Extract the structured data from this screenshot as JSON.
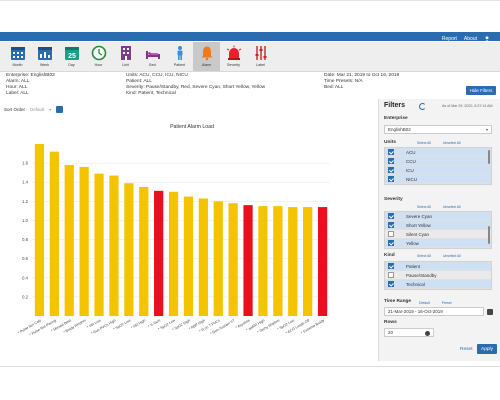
{
  "header": {
    "report_link": "Report",
    "about_link": "About",
    "user_icon": "user-icon"
  },
  "toolbar": {
    "items": [
      {
        "label": "Month",
        "icon": "calendar-month-icon"
      },
      {
        "label": "Week",
        "icon": "calendar-week-icon"
      },
      {
        "label": "Day",
        "icon": "calendar-day-icon"
      },
      {
        "label": "Hour",
        "icon": "clock-icon"
      },
      {
        "label": "Unit",
        "icon": "building-icon"
      },
      {
        "label": "Bed",
        "icon": "bed-icon"
      },
      {
        "label": "Patient",
        "icon": "person-icon"
      },
      {
        "label": "Alarm",
        "icon": "bell-icon"
      },
      {
        "label": "Severity",
        "icon": "siren-icon"
      },
      {
        "label": "Label",
        "icon": "sliders-icon"
      }
    ],
    "active": "Alarm"
  },
  "summary": {
    "enterprise": "Enterprise: EnglishB02",
    "alarm": "Alarm: ALL",
    "hour": "Hour: ALL",
    "label": "Label: ALL",
    "units": "Units: ACU, CCU, ICU, NICU",
    "patient": "Patient: ALL",
    "severity": "Severity: Pause/Standby, Red, Severe Cyan, Short Yellow, Yellow",
    "kind": "Kind: Patient, Technical",
    "date": "Date: Mar 21, 2019 to Oct 16, 2019",
    "time_presets": "Time Presets: N/A",
    "bed": "Bed: ALL"
  },
  "hide_filters_label": "Hide Filters",
  "sort": {
    "label": "Sort Order",
    "value": "Default"
  },
  "chart_data": {
    "type": "bar",
    "title": "Patient Alarm Load",
    "ylim": [
      0,
      1.8
    ],
    "yticks": [
      0.2,
      0.4,
      0.6,
      0.8,
      1.0,
      1.2,
      1.4,
      1.6
    ],
    "categories": [
      "* Pulse Not Cals",
      "* Pulse Not Pacing",
      "* Missed Beat",
      "* Brady Rhythm",
      "* HR Low",
      "* Run PVCs High",
      "* SpO2 Low",
      "* HR High",
      "* V-Tach",
      "* SpO2 Low",
      "* SpO2 High",
      "* NBP High",
      "* R on T PVCs",
      "* Non-Sustain VT",
      "* Asystole",
      "* awRR High",
      "* Tachy Rhythm",
      "* SpO2 Low",
      "* ECG Leads Off",
      "* Extreme Brady"
    ],
    "values": [
      1.8,
      1.72,
      1.58,
      1.56,
      1.49,
      1.47,
      1.39,
      1.35,
      1.31,
      1.3,
      1.25,
      1.23,
      1.2,
      1.18,
      1.16,
      1.15,
      1.15,
      1.14,
      1.14,
      1.14
    ],
    "severity": [
      "yellow",
      "yellow",
      "yellow",
      "yellow",
      "yellow",
      "yellow",
      "yellow",
      "yellow",
      "red",
      "yellow",
      "yellow",
      "yellow",
      "yellow",
      "yellow",
      "red",
      "yellow",
      "yellow",
      "yellow",
      "yellow",
      "red"
    ],
    "colors": {
      "yellow": "#f5c400",
      "red": "#e8101c"
    }
  },
  "filters": {
    "title": "Filters",
    "as_of": "As of Mar 29, 2020, 8:37:14 AM",
    "enterprise": {
      "label": "Enterprise",
      "value": "EnglishB02"
    },
    "units": {
      "label": "Units",
      "select_all": "Select All",
      "unselect_all": "Unselect All",
      "items": [
        {
          "name": "ACU",
          "checked": true
        },
        {
          "name": "CCU",
          "checked": true
        },
        {
          "name": "ICU",
          "checked": true
        },
        {
          "name": "NICU",
          "checked": true
        }
      ]
    },
    "severity": {
      "label": "Severity",
      "select_all": "Select All",
      "unselect_all": "Unselect All",
      "items": [
        {
          "name": "Severe Cyan",
          "checked": true
        },
        {
          "name": "Short Yellow",
          "checked": true
        },
        {
          "name": "Silent Cyan",
          "checked": false
        },
        {
          "name": "Yellow",
          "checked": true
        }
      ]
    },
    "kind": {
      "label": "Kind",
      "select_all": "Select All",
      "unselect_all": "Unselect All",
      "items": [
        {
          "name": "Patient",
          "checked": true
        },
        {
          "name": "Pause/Standby",
          "checked": false
        },
        {
          "name": "Technical",
          "checked": true
        }
      ]
    },
    "time_range": {
      "label": "Time Range",
      "default": "Default",
      "preset": "Preset",
      "value": "21-Mar-2019 - 16-Oct-2019"
    },
    "rows": {
      "label": "Rows",
      "value": "20"
    },
    "reset": "Reset",
    "apply": "Apply"
  }
}
